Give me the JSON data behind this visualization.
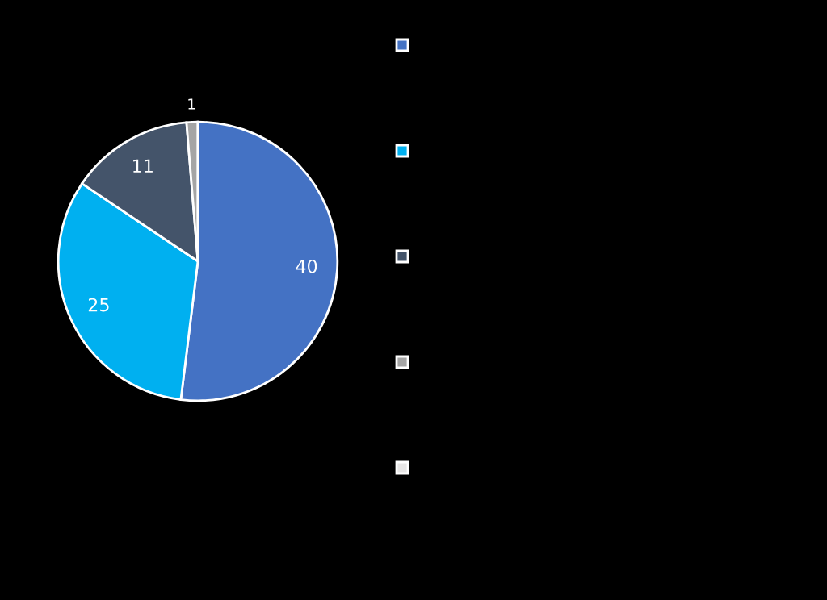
{
  "chart_data": {
    "type": "pie",
    "categories": [
      null,
      null,
      null,
      null,
      null
    ],
    "values": [
      40,
      25,
      11,
      1,
      0
    ],
    "colors": [
      "#4472c4",
      "#00b0f0",
      "#44546a",
      "#a5a5a5",
      "#e7e6e6"
    ],
    "value_labels": [
      "40",
      "25",
      "11",
      "1",
      null
    ]
  }
}
